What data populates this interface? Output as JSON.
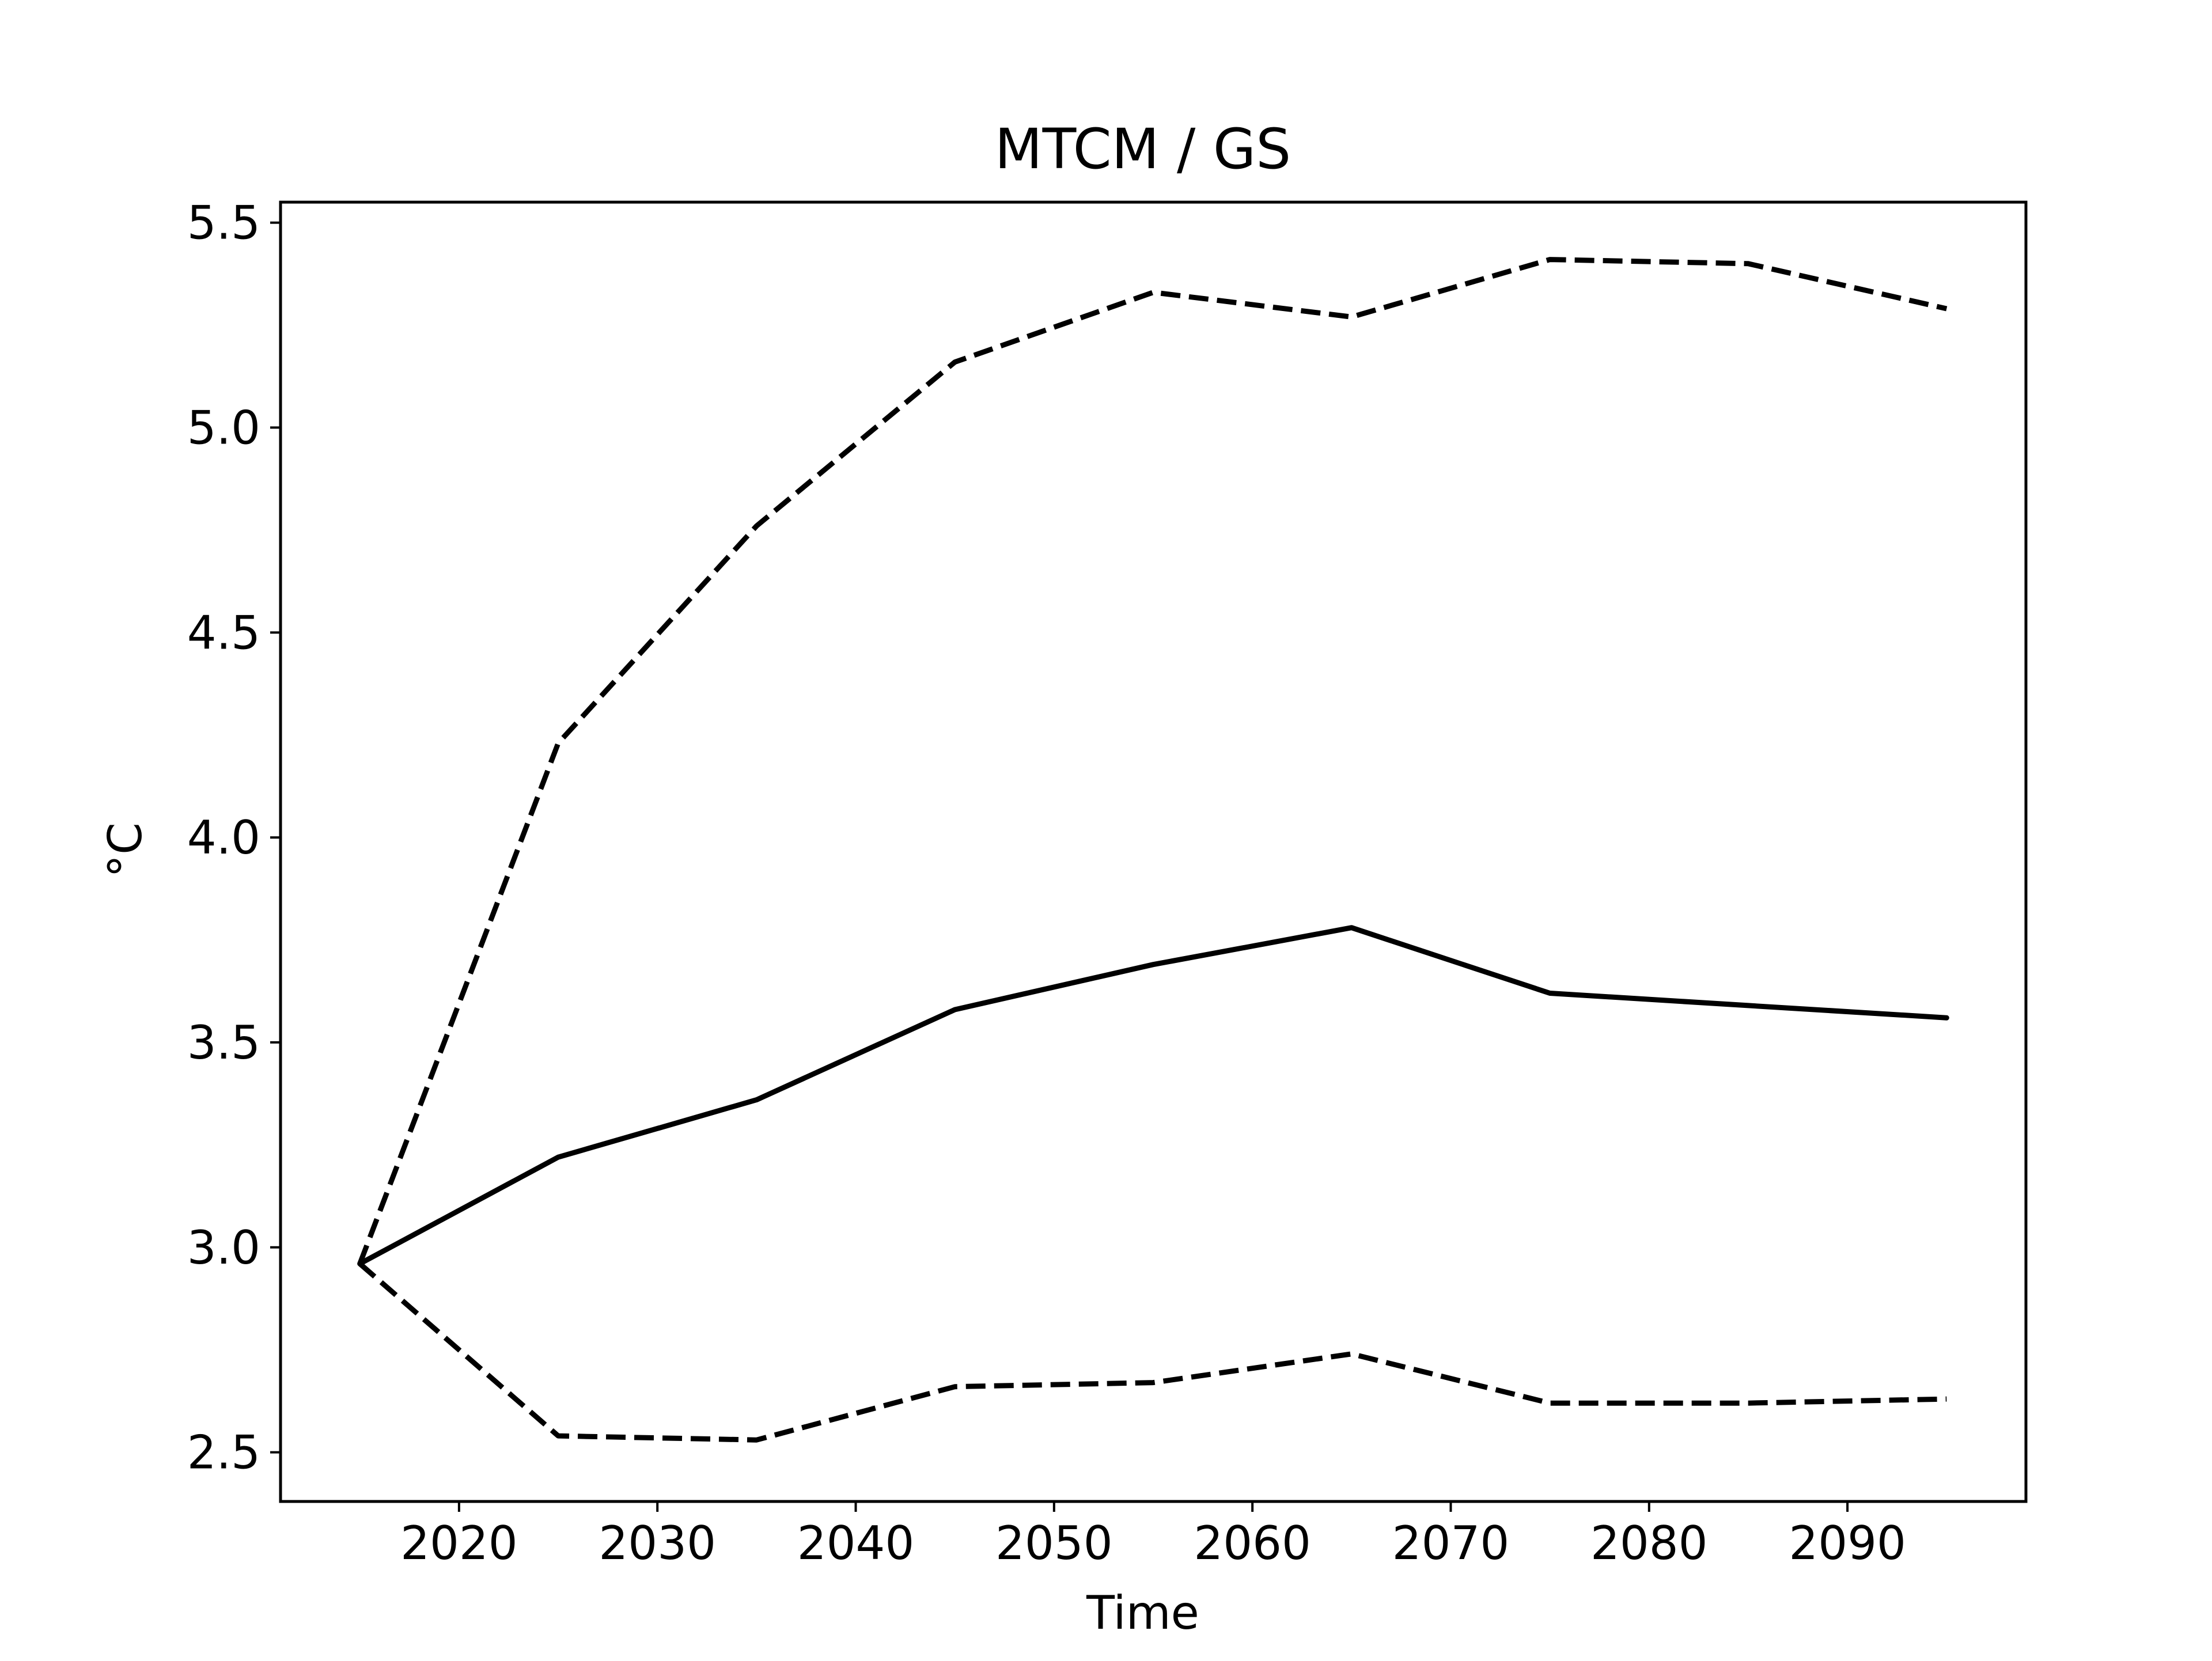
{
  "chart_data": {
    "type": "line",
    "title": "MTCM / GS",
    "xlabel": "Time",
    "ylabel": "°C",
    "xlim": [
      2011,
      2099
    ],
    "ylim": [
      2.38,
      5.55
    ],
    "xticks": [
      2020,
      2030,
      2040,
      2050,
      2060,
      2070,
      2080,
      2090
    ],
    "xtick_labels": [
      "2020",
      "2030",
      "2040",
      "2050",
      "2060",
      "2070",
      "2080",
      "2090"
    ],
    "yticks": [
      2.5,
      3.0,
      3.5,
      4.0,
      4.5,
      5.0,
      5.5
    ],
    "ytick_labels": [
      "2.5",
      "3.0",
      "3.5",
      "4.0",
      "4.5",
      "5.0",
      "5.5"
    ],
    "grid": false,
    "legend": "none",
    "x": [
      2015,
      2025,
      2035,
      2045,
      2055,
      2065,
      2075,
      2085,
      2095
    ],
    "series": [
      {
        "style": "solid",
        "color": "#000000",
        "values": [
          2.96,
          3.22,
          3.36,
          3.58,
          3.69,
          3.78,
          3.62,
          3.59,
          3.56
        ]
      },
      {
        "style": "dashed",
        "color": "#000000",
        "values": [
          2.96,
          4.23,
          4.76,
          5.16,
          5.33,
          5.27,
          5.41,
          5.4,
          5.29
        ]
      },
      {
        "style": "dashed",
        "color": "#000000",
        "values": [
          2.96,
          2.54,
          2.53,
          2.66,
          2.67,
          2.74,
          2.62,
          2.62,
          2.63
        ]
      }
    ]
  }
}
